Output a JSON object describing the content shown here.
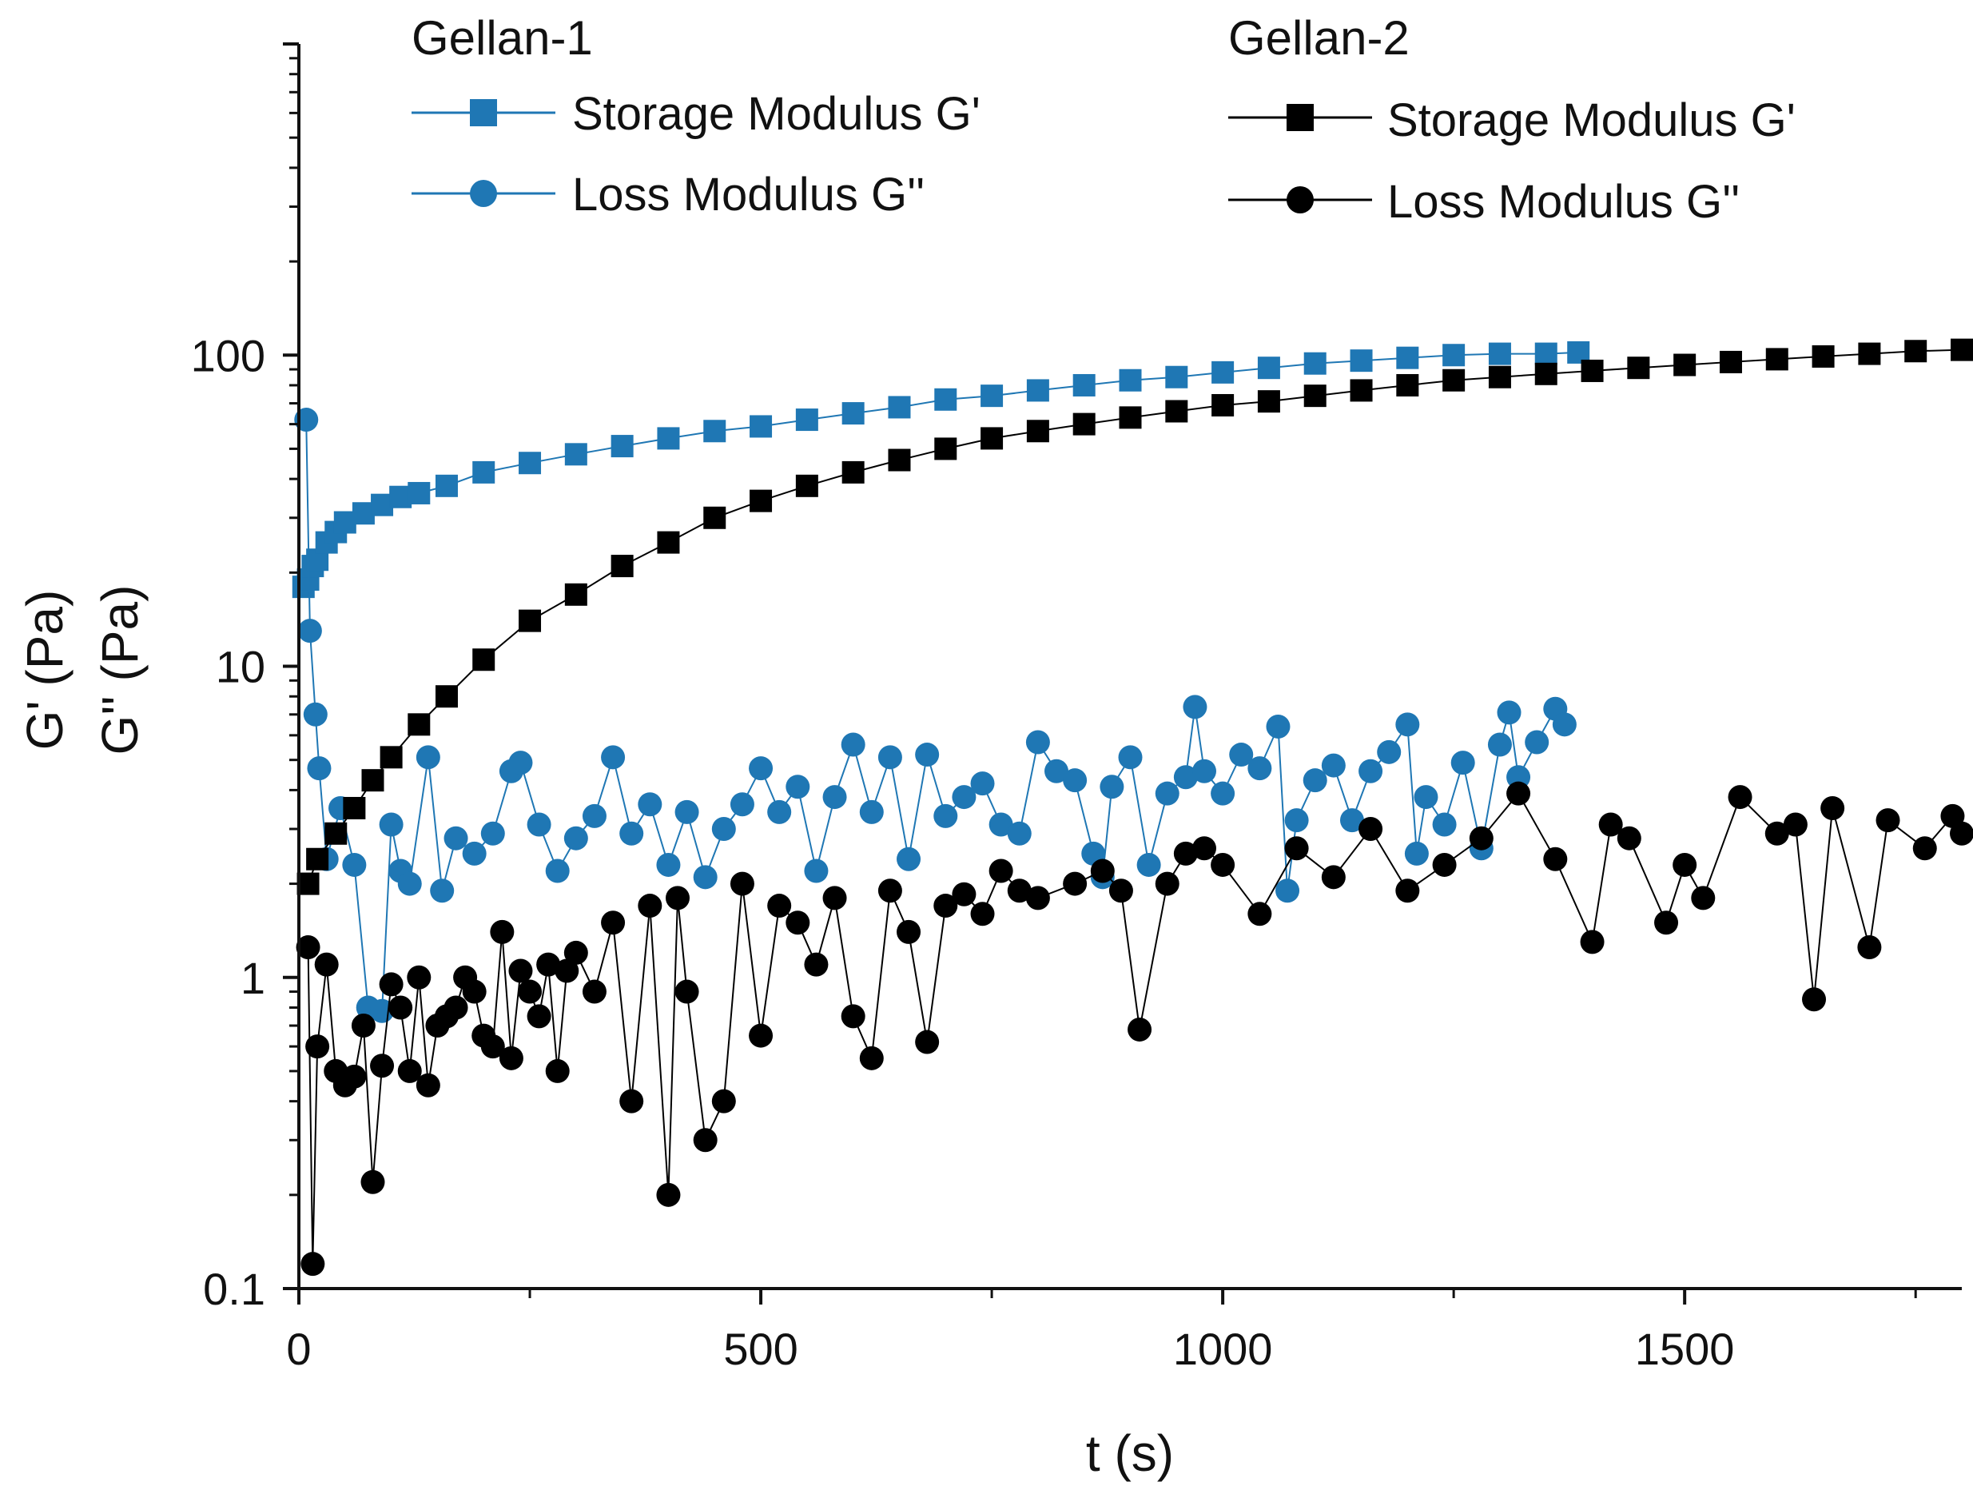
{
  "chart_data": {
    "type": "scatter",
    "title": "",
    "xlabel": "t (s)",
    "ylabel_lines": [
      "G' (Pa)",
      "G'' (Pa)"
    ],
    "xlim": [
      0,
      1800
    ],
    "ylim": [
      0.1,
      1000
    ],
    "yscale": "log",
    "x_ticks": [
      {
        "value": 0,
        "label": "0"
      },
      {
        "value": 500,
        "label": "500"
      },
      {
        "value": 1000,
        "label": "1000"
      },
      {
        "value": 1500,
        "label": "1500"
      }
    ],
    "y_ticks": [
      {
        "value": 0.1,
        "label": "0.1"
      },
      {
        "value": 1,
        "label": "1"
      },
      {
        "value": 10,
        "label": "10"
      },
      {
        "value": 100,
        "label": "100"
      }
    ],
    "colors": {
      "gellan1": "#1f77b4",
      "gellan2": "#000000",
      "axis": "#111111"
    },
    "legend": [
      {
        "group": "Gellan-1",
        "color": "#1f77b4",
        "entries": [
          {
            "label": "Storage Modulus G'",
            "marker": "square"
          },
          {
            "label": "Loss Modulus G''",
            "marker": "circle"
          }
        ]
      },
      {
        "group": "Gellan-2",
        "color": "#000000",
        "entries": [
          {
            "label": "Storage Modulus G'",
            "marker": "square"
          },
          {
            "label": "Loss Modulus G''",
            "marker": "circle"
          }
        ]
      }
    ],
    "series": [
      {
        "name": "Gellan-1 Storage Modulus G'",
        "color": "#1f77b4",
        "marker": "square",
        "x": [
          5,
          10,
          15,
          20,
          30,
          40,
          50,
          70,
          90,
          110,
          130,
          160,
          200,
          250,
          300,
          350,
          400,
          450,
          500,
          550,
          600,
          650,
          700,
          750,
          800,
          850,
          900,
          950,
          1000,
          1050,
          1100,
          1150,
          1200,
          1250,
          1300,
          1350,
          1385
        ],
        "y": [
          18,
          19,
          21,
          22,
          25,
          27,
          29,
          31,
          33,
          35,
          36,
          38,
          42,
          45,
          48,
          51,
          54,
          57,
          59,
          62,
          65,
          68,
          72,
          74,
          77,
          80,
          83,
          85,
          88,
          91,
          94,
          96,
          98,
          100,
          101,
          101,
          102
        ]
      },
      {
        "name": "Gellan-1 Loss Modulus G''",
        "color": "#1f77b4",
        "marker": "circle",
        "x": [
          8,
          12,
          18,
          22,
          30,
          45,
          60,
          75,
          90,
          100,
          110,
          120,
          140,
          155,
          170,
          190,
          210,
          230,
          240,
          260,
          280,
          300,
          320,
          340,
          360,
          380,
          400,
          420,
          440,
          460,
          480,
          500,
          520,
          540,
          560,
          580,
          600,
          620,
          640,
          660,
          680,
          700,
          720,
          740,
          760,
          780,
          800,
          820,
          840,
          860,
          870,
          880,
          900,
          920,
          940,
          960,
          970,
          980,
          1000,
          1020,
          1040,
          1060,
          1070,
          1080,
          1100,
          1120,
          1140,
          1160,
          1180,
          1200,
          1210,
          1220,
          1240,
          1260,
          1280,
          1300,
          1310,
          1320,
          1340,
          1360,
          1370
        ],
        "y": [
          62,
          13,
          7,
          4.7,
          2.4,
          3.5,
          2.3,
          0.8,
          0.78,
          3.1,
          2.2,
          2.0,
          5.1,
          1.9,
          2.8,
          2.5,
          2.9,
          4.6,
          4.9,
          3.1,
          2.2,
          2.8,
          3.3,
          5.1,
          2.9,
          3.6,
          2.3,
          3.4,
          2.1,
          3.0,
          3.6,
          4.7,
          3.4,
          4.1,
          2.2,
          3.8,
          5.6,
          3.4,
          5.1,
          2.4,
          5.2,
          3.3,
          3.8,
          4.2,
          3.1,
          2.9,
          5.7,
          4.6,
          4.3,
          2.5,
          2.1,
          4.1,
          5.1,
          2.3,
          3.9,
          4.4,
          7.4,
          4.6,
          3.9,
          5.2,
          4.7,
          6.4,
          1.9,
          3.2,
          4.3,
          4.8,
          3.2,
          4.6,
          5.3,
          6.5,
          2.5,
          3.8,
          3.1,
          4.9,
          2.6,
          5.6,
          7.1,
          4.4,
          5.7,
          7.3,
          6.5
        ]
      },
      {
        "name": "Gellan-2 Storage Modulus G'",
        "color": "#000000",
        "marker": "square",
        "x": [
          10,
          20,
          40,
          60,
          80,
          100,
          130,
          160,
          200,
          250,
          300,
          350,
          400,
          450,
          500,
          550,
          600,
          650,
          700,
          750,
          800,
          850,
          900,
          950,
          1000,
          1050,
          1100,
          1150,
          1200,
          1250,
          1300,
          1350,
          1400,
          1450,
          1500,
          1550,
          1600,
          1650,
          1700,
          1750,
          1800
        ],
        "y": [
          2.0,
          2.4,
          2.9,
          3.5,
          4.3,
          5.1,
          6.5,
          8.0,
          10.5,
          14,
          17,
          21,
          25,
          30,
          34,
          38,
          42,
          46,
          50,
          54,
          57,
          60,
          63,
          66,
          69,
          71,
          74,
          77,
          80,
          83,
          85,
          87,
          89,
          91,
          93,
          95,
          97,
          99,
          101,
          103,
          104
        ]
      },
      {
        "name": "Gellan-2 Loss Modulus G''",
        "color": "#000000",
        "marker": "circle",
        "x": [
          10,
          15,
          20,
          30,
          40,
          50,
          60,
          70,
          80,
          90,
          100,
          110,
          120,
          130,
          140,
          150,
          160,
          170,
          180,
          190,
          200,
          210,
          220,
          230,
          240,
          250,
          260,
          270,
          280,
          290,
          300,
          320,
          340,
          360,
          380,
          400,
          410,
          420,
          440,
          460,
          480,
          500,
          520,
          540,
          560,
          580,
          600,
          620,
          640,
          660,
          680,
          700,
          720,
          740,
          760,
          780,
          800,
          840,
          870,
          890,
          910,
          940,
          960,
          980,
          1000,
          1040,
          1080,
          1120,
          1160,
          1200,
          1240,
          1280,
          1320,
          1360,
          1400,
          1420,
          1440,
          1480,
          1500,
          1520,
          1560,
          1600,
          1620,
          1640,
          1660,
          1700,
          1720,
          1760,
          1790,
          1800
        ],
        "y": [
          1.25,
          0.12,
          0.6,
          1.1,
          0.5,
          0.45,
          0.48,
          0.7,
          0.22,
          0.52,
          0.95,
          0.8,
          0.5,
          1.0,
          0.45,
          0.7,
          0.75,
          0.8,
          1.0,
          0.9,
          0.65,
          0.6,
          1.4,
          0.55,
          1.05,
          0.9,
          0.75,
          1.1,
          0.5,
          1.05,
          1.2,
          0.9,
          1.5,
          0.4,
          1.7,
          0.2,
          1.8,
          0.9,
          0.3,
          0.4,
          2.0,
          0.65,
          1.7,
          1.5,
          1.1,
          1.8,
          0.75,
          0.55,
          1.9,
          1.4,
          0.62,
          1.7,
          1.85,
          1.6,
          2.2,
          1.9,
          1.8,
          2.0,
          2.2,
          1.9,
          0.68,
          2.0,
          2.5,
          2.6,
          2.3,
          1.6,
          2.6,
          2.1,
          3.0,
          1.9,
          2.3,
          2.8,
          3.9,
          2.4,
          1.3,
          3.1,
          2.8,
          1.5,
          2.3,
          1.8,
          3.8,
          2.9,
          3.1,
          0.85,
          3.5,
          1.25,
          3.2,
          2.6,
          3.3,
          2.9
        ]
      }
    ]
  }
}
